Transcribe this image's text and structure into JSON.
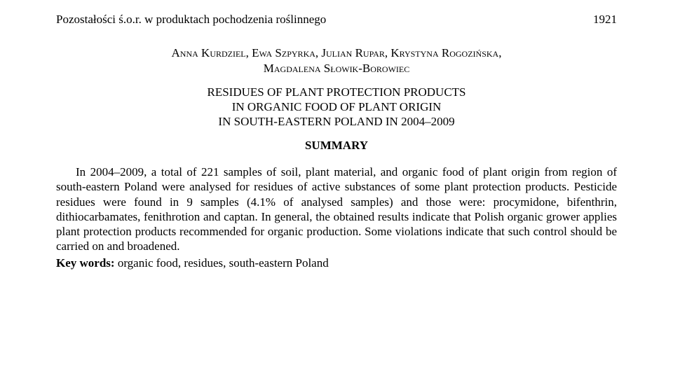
{
  "header": {
    "running_title": "Pozostałości ś.o.r. w produktach pochodzenia roślinnego",
    "page_number": "1921"
  },
  "authors": "Anna Kurdziel, Ewa Szpyrka, Julian Rupar, Krystyna Rogozińska,",
  "affiliation": "Magdalena Słowik-Borowiec",
  "title_line1": "RESIDUES OF PLANT PROTECTION PRODUCTS",
  "title_line2": "IN ORGANIC FOOD OF PLANT ORIGIN",
  "title_line3": "IN SOUTH-EASTERN POLAND IN 2004–2009",
  "summary_label": "SUMMARY",
  "body": "In 2004–2009, a total of 221 samples of soil, plant material, and organic food of plant origin from region of south-eastern Poland were analysed for residues of active substances of some plant protection products. Pesticide residues were found in 9 samples (4.1% of analysed samples) and those were: procymidone, bifenthrin, dithiocarbamates, fenithrotion and captan. In general, the obtained results indicate that Polish organic grower applies plant protection products recommended for organic production. Some violations indicate that such control should be carried on and broadened.",
  "keywords_label": "Key words:",
  "keywords": " organic food, residues, south-eastern Poland",
  "colors": {
    "text": "#000000",
    "background": "#ffffff"
  },
  "typography": {
    "font_family": "Times New Roman",
    "base_fontsize_pt": 13,
    "line_height": 1.25
  }
}
